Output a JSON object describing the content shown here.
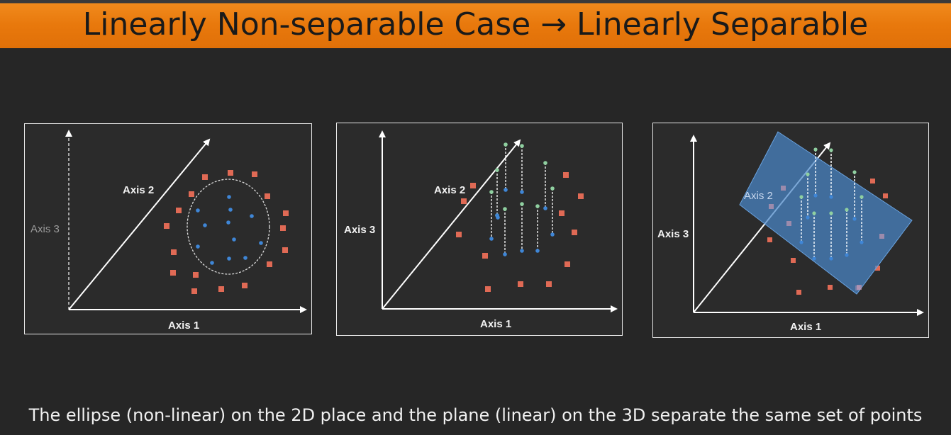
{
  "title": "Linearly Non-separable Case → Linearly Separable",
  "caption": "The ellipse (non-linear) on the 2D place and the plane (linear) on the 3D separate the same set of points",
  "colors": {
    "accent": "#e8780c",
    "class_a": "#e06a55",
    "class_b": "#3f86d6",
    "lifted_point": "#8fd0a0",
    "plane": "#4a86c8"
  },
  "panels": [
    {
      "axis1": "Axis 1",
      "axis2": "Axis 2",
      "axis3": "Axis 3"
    },
    {
      "axis1": "Axis 1",
      "axis2": "Axis 2",
      "axis3": "Axis 3"
    },
    {
      "axis1": "Axis 1",
      "axis2": "Axis 2",
      "axis3": "Axis 3"
    }
  ]
}
